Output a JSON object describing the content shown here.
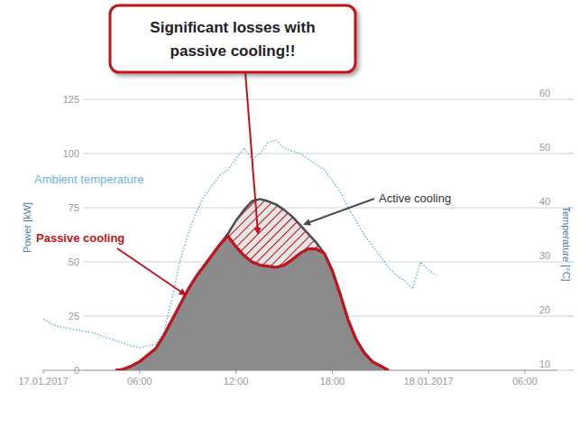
{
  "chart_data": {
    "type": "line",
    "ylabel": "Power [kW]",
    "y2label": "Temperature [°C]",
    "xlim": [
      0,
      32
    ],
    "xticks": [
      {
        "value": 0,
        "label": "17.01.2017"
      },
      {
        "value": 6,
        "label": "06:00"
      },
      {
        "value": 12,
        "label": "12:00"
      },
      {
        "value": 18,
        "label": "18:00"
      },
      {
        "value": 24,
        "label": "18.01.2017"
      },
      {
        "value": 30,
        "label": "06:00"
      }
    ],
    "ylim": [
      0,
      125
    ],
    "yticks": [
      0,
      25,
      50,
      75,
      100,
      125
    ],
    "y2lim": [
      10,
      60
    ],
    "y2ticks": [
      10,
      20,
      30,
      40,
      50,
      60
    ],
    "grid": true,
    "annotations": [
      {
        "lines": [
          "Significant losses with",
          "passive cooling!!"
        ]
      }
    ],
    "series": [
      {
        "name": "Ambient temperature",
        "type": "line",
        "axis": "y2",
        "color": "#6cb4d8",
        "line_style": "dotted",
        "x": [
          0,
          0.5,
          1,
          1.5,
          2,
          2.5,
          3,
          3.5,
          4,
          4.5,
          5,
          5.5,
          6,
          6.5,
          7,
          7.5,
          8,
          8.5,
          9,
          9.5,
          10,
          10.5,
          11,
          11.5,
          12,
          12.5,
          13,
          13.5,
          14,
          14.5,
          15,
          15.5,
          16,
          16.5,
          17,
          17.5,
          18,
          18.5,
          19,
          19.5,
          20,
          20.5,
          21,
          21.5,
          22,
          22.5,
          23,
          23.5,
          24,
          24.5
        ],
        "values": [
          19.5,
          18.5,
          18,
          17.8,
          17.5,
          17.2,
          17,
          16.5,
          16,
          15.5,
          15,
          14.5,
          14.2,
          14.5,
          14.8,
          17,
          23,
          30,
          35,
          39,
          42,
          44,
          46,
          47,
          49,
          51,
          49,
          50,
          52,
          52.5,
          51,
          50.5,
          50,
          49,
          48,
          47,
          45,
          43,
          40,
          37.5,
          35,
          33,
          31,
          29,
          27.5,
          26.5,
          25,
          30,
          28.5,
          27.5
        ]
      },
      {
        "name": "Passive cooling",
        "type": "area",
        "color": "#c0141c",
        "line_style": "solid",
        "x": [
          4.5,
          5,
          5.5,
          6,
          6.5,
          7,
          7.5,
          8,
          8.5,
          9,
          9.5,
          10,
          10.5,
          11,
          11.5,
          12,
          12.5,
          13,
          13.5,
          14,
          14.5,
          15,
          15.5,
          16,
          16.5,
          17,
          17.5,
          18,
          18.5,
          19,
          19.5,
          20,
          20.5,
          21,
          21.5
        ],
        "values": [
          0,
          0.5,
          2,
          4,
          7,
          10,
          16,
          23,
          30,
          37,
          43,
          48,
          53,
          58,
          62,
          57,
          53,
          50,
          48.5,
          48,
          47.5,
          48.5,
          51,
          54,
          56,
          56,
          54,
          46,
          35,
          23,
          14,
          8,
          4,
          2,
          0
        ]
      },
      {
        "name": "Active cooling",
        "type": "area",
        "color": "#4d4d4d",
        "line_style": "solid",
        "x": [
          4.5,
          5,
          5.5,
          6,
          6.5,
          7,
          7.5,
          8,
          8.5,
          9,
          9.5,
          10,
          10.5,
          11,
          11.5,
          12,
          12.5,
          13,
          13.5,
          14,
          14.5,
          15,
          15.5,
          16,
          16.5,
          17,
          17.5,
          18,
          18.5,
          19,
          19.5,
          20,
          20.5,
          21,
          21.5
        ],
        "values": [
          0,
          0.5,
          2,
          4,
          7,
          10,
          16,
          23,
          30,
          37,
          43,
          48,
          53,
          58,
          63,
          69,
          74,
          78,
          79,
          78,
          76.5,
          74,
          71,
          67,
          63,
          59,
          54,
          46,
          35,
          23,
          14,
          8,
          4,
          2,
          0
        ]
      }
    ]
  }
}
